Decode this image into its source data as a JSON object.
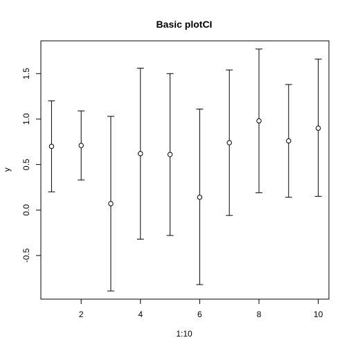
{
  "chart_data": {
    "type": "scatter",
    "title": "Basic plotCI",
    "xlabel": "1:10",
    "ylabel": "y",
    "xlim": [
      0.64,
      10.36
    ],
    "ylim": [
      -0.98,
      1.86
    ],
    "xticks": [
      2,
      4,
      6,
      8,
      10
    ],
    "yticks": [
      -0.5,
      0.0,
      0.5,
      1.0,
      1.5
    ],
    "ytick_labels": [
      "-0.5",
      "0.0",
      "0.5",
      "1.0",
      "1.5"
    ],
    "grid": false,
    "marker": "open-circle",
    "x": [
      1,
      2,
      3,
      4,
      5,
      6,
      7,
      8,
      9,
      10
    ],
    "y": [
      0.7,
      0.71,
      0.07,
      0.62,
      0.61,
      0.14,
      0.74,
      0.98,
      0.76,
      0.9
    ],
    "lower": [
      0.2,
      0.33,
      -0.89,
      -0.32,
      -0.28,
      -0.82,
      -0.06,
      0.19,
      0.14,
      0.15
    ],
    "upper": [
      1.2,
      1.09,
      1.03,
      1.56,
      1.5,
      1.11,
      1.54,
      1.77,
      1.38,
      1.66
    ]
  }
}
